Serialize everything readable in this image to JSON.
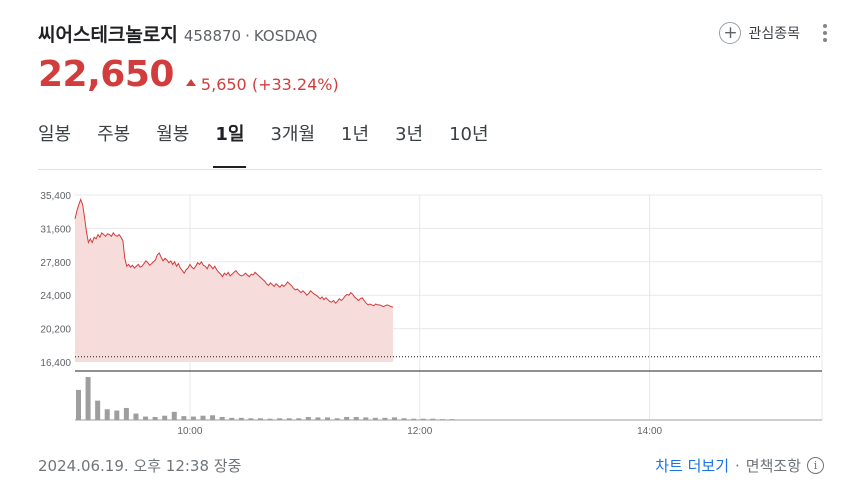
{
  "stock": {
    "name": "씨어스테크놀로지",
    "code": "458870",
    "market": "KOSDAQ",
    "price": "22,650",
    "change": "5,650",
    "change_pct": "(+33.24%)"
  },
  "watch": {
    "label": "관심종목"
  },
  "tabs": [
    {
      "label": "일봉",
      "active": false
    },
    {
      "label": "주봉",
      "active": false
    },
    {
      "label": "월봉",
      "active": false
    },
    {
      "label": "1일",
      "active": true
    },
    {
      "label": "3개월",
      "active": false
    },
    {
      "label": "1년",
      "active": false
    },
    {
      "label": "3년",
      "active": false
    },
    {
      "label": "10년",
      "active": false
    }
  ],
  "chart_data": {
    "type": "area",
    "y_ticks": [
      "35,400",
      "31,600",
      "27,800",
      "24,000",
      "20,200",
      "16,400"
    ],
    "ylim": [
      16400,
      35400
    ],
    "x_ticks": [
      "10:00",
      "12:00",
      "14:00"
    ],
    "session_start_minutes": 540,
    "session_end_minutes": 930,
    "prev_close": 17000,
    "grid": true,
    "colors": {
      "line": "#d33c3c",
      "fill": "#f7dcdc",
      "volume": "#9e9e9e",
      "grid": "#e8e8e8"
    },
    "series": [
      {
        "values": [
          [
            540,
            32700
          ],
          [
            541,
            33600
          ],
          [
            542,
            34300
          ],
          [
            543,
            34900
          ],
          [
            544,
            34300
          ],
          [
            545,
            32800
          ],
          [
            546,
            31200
          ],
          [
            547,
            30000
          ],
          [
            548,
            30400
          ],
          [
            549,
            30000
          ],
          [
            550,
            30600
          ],
          [
            551,
            30400
          ],
          [
            552,
            30900
          ],
          [
            553,
            30600
          ],
          [
            554,
            31100
          ],
          [
            555,
            30900
          ],
          [
            556,
            30700
          ],
          [
            557,
            31000
          ],
          [
            558,
            30900
          ],
          [
            559,
            30700
          ],
          [
            560,
            31100
          ],
          [
            561,
            30800
          ],
          [
            562,
            30700
          ],
          [
            563,
            30900
          ],
          [
            564,
            30600
          ],
          [
            565,
            30200
          ],
          [
            566,
            28200
          ],
          [
            567,
            27300
          ],
          [
            568,
            27500
          ],
          [
            569,
            27200
          ],
          [
            570,
            27400
          ],
          [
            571,
            27100
          ],
          [
            572,
            27300
          ],
          [
            573,
            27500
          ],
          [
            574,
            27200
          ],
          [
            575,
            27300
          ],
          [
            576,
            27600
          ],
          [
            577,
            27900
          ],
          [
            578,
            27700
          ],
          [
            579,
            27400
          ],
          [
            580,
            27600
          ],
          [
            581,
            27800
          ],
          [
            582,
            28000
          ],
          [
            583,
            28600
          ],
          [
            584,
            28800
          ],
          [
            585,
            28300
          ],
          [
            586,
            27900
          ],
          [
            587,
            28200
          ],
          [
            588,
            28000
          ],
          [
            589,
            27700
          ],
          [
            590,
            27900
          ],
          [
            591,
            27500
          ],
          [
            592,
            27800
          ],
          [
            593,
            27300
          ],
          [
            594,
            27600
          ],
          [
            595,
            27100
          ],
          [
            596,
            26800
          ],
          [
            597,
            26500
          ],
          [
            598,
            26900
          ],
          [
            599,
            27100
          ],
          [
            600,
            27500
          ],
          [
            601,
            27200
          ],
          [
            602,
            27000
          ],
          [
            603,
            27300
          ],
          [
            604,
            27700
          ],
          [
            605,
            27500
          ],
          [
            606,
            27800
          ],
          [
            607,
            27400
          ],
          [
            608,
            27300
          ],
          [
            609,
            27000
          ],
          [
            610,
            27500
          ],
          [
            611,
            27300
          ],
          [
            612,
            27000
          ],
          [
            613,
            27300
          ],
          [
            614,
            26900
          ],
          [
            615,
            26600
          ],
          [
            616,
            26400
          ],
          [
            617,
            26100
          ],
          [
            618,
            26500
          ],
          [
            619,
            26300
          ],
          [
            620,
            26600
          ],
          [
            621,
            26200
          ],
          [
            622,
            26400
          ],
          [
            623,
            26600
          ],
          [
            624,
            26800
          ],
          [
            625,
            26500
          ],
          [
            626,
            26300
          ],
          [
            627,
            26200
          ],
          [
            628,
            26300
          ],
          [
            629,
            26500
          ],
          [
            630,
            26300
          ],
          [
            631,
            26100
          ],
          [
            632,
            26400
          ],
          [
            633,
            26300
          ],
          [
            634,
            26600
          ],
          [
            635,
            26400
          ],
          [
            636,
            26200
          ],
          [
            637,
            26000
          ],
          [
            638,
            25800
          ],
          [
            639,
            25600
          ],
          [
            640,
            25300
          ],
          [
            641,
            25100
          ],
          [
            642,
            25400
          ],
          [
            643,
            25200
          ],
          [
            644,
            25000
          ],
          [
            645,
            25300
          ],
          [
            646,
            25100
          ],
          [
            647,
            24900
          ],
          [
            648,
            25200
          ],
          [
            649,
            25000
          ],
          [
            650,
            25200
          ],
          [
            651,
            25500
          ],
          [
            652,
            25300
          ],
          [
            653,
            25100
          ],
          [
            654,
            24800
          ],
          [
            655,
            24600
          ],
          [
            656,
            24700
          ],
          [
            657,
            24500
          ],
          [
            658,
            24300
          ],
          [
            659,
            24500
          ],
          [
            660,
            24300
          ],
          [
            661,
            24000
          ],
          [
            662,
            24200
          ],
          [
            663,
            24500
          ],
          [
            664,
            24300
          ],
          [
            665,
            24100
          ],
          [
            666,
            24000
          ],
          [
            667,
            23800
          ],
          [
            668,
            23600
          ],
          [
            669,
            23800
          ],
          [
            670,
            23500
          ],
          [
            671,
            23700
          ],
          [
            672,
            23500
          ],
          [
            673,
            23300
          ],
          [
            674,
            23200
          ],
          [
            675,
            23400
          ],
          [
            676,
            23100
          ],
          [
            677,
            23300
          ],
          [
            678,
            23600
          ],
          [
            679,
            23400
          ],
          [
            680,
            23600
          ],
          [
            681,
            23900
          ],
          [
            682,
            24100
          ],
          [
            683,
            24000
          ],
          [
            684,
            24300
          ],
          [
            685,
            24100
          ],
          [
            686,
            23800
          ],
          [
            687,
            23600
          ],
          [
            688,
            23400
          ],
          [
            689,
            23600
          ],
          [
            690,
            23700
          ],
          [
            691,
            23400
          ],
          [
            692,
            23100
          ],
          [
            693,
            22900
          ],
          [
            694,
            23000
          ],
          [
            695,
            22900
          ],
          [
            696,
            22800
          ],
          [
            697,
            23000
          ],
          [
            698,
            22900
          ],
          [
            699,
            22900
          ],
          [
            700,
            22800
          ],
          [
            701,
            22700
          ],
          [
            702,
            22800
          ],
          [
            703,
            22900
          ],
          [
            704,
            22800
          ],
          [
            705,
            22700
          ],
          [
            706,
            22650
          ]
        ]
      }
    ],
    "volume": [
      [
        540,
        70
      ],
      [
        545,
        100
      ],
      [
        550,
        45
      ],
      [
        555,
        25
      ],
      [
        560,
        22
      ],
      [
        565,
        28
      ],
      [
        570,
        15
      ],
      [
        575,
        8
      ],
      [
        580,
        7
      ],
      [
        585,
        10
      ],
      [
        590,
        19
      ],
      [
        595,
        9
      ],
      [
        600,
        8
      ],
      [
        605,
        10
      ],
      [
        610,
        11
      ],
      [
        615,
        7
      ],
      [
        620,
        5
      ],
      [
        625,
        5
      ],
      [
        630,
        4
      ],
      [
        635,
        4
      ],
      [
        640,
        3
      ],
      [
        645,
        4
      ],
      [
        650,
        4
      ],
      [
        655,
        4
      ],
      [
        660,
        7
      ],
      [
        665,
        6
      ],
      [
        670,
        6
      ],
      [
        675,
        4
      ],
      [
        680,
        7
      ],
      [
        685,
        7
      ],
      [
        690,
        6
      ],
      [
        695,
        5
      ],
      [
        700,
        5
      ],
      [
        705,
        6
      ],
      [
        710,
        4
      ],
      [
        715,
        3
      ],
      [
        720,
        3
      ],
      [
        725,
        3
      ],
      [
        730,
        2
      ],
      [
        735,
        2
      ]
    ]
  },
  "footer": {
    "timestamp": "2024.06.19. 오후 12:38 장중",
    "more_chart": "차트 더보기",
    "separator": "·",
    "disclaimer": "면책조항"
  }
}
